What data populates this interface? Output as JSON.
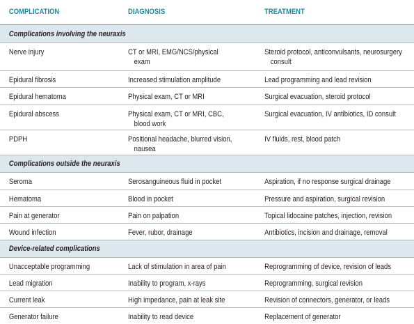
{
  "header": {
    "columns": [
      "COMPLICATION",
      "DIAGNOSIS",
      "TREATMENT"
    ]
  },
  "sections": [
    {
      "title": "Complications involving the neuraxis",
      "rows": [
        [
          "Nerve injury",
          "CT or MRI, EMG/NCS/physical exam",
          "Steroid protocol, anticonvulsants, neurosurgery consult"
        ],
        [
          "Epidural fibrosis",
          "Increased stimulation amplitude",
          "Lead programming and lead revision"
        ],
        [
          "Epidural hematoma",
          "Physical exam, CT or MRI",
          "Surgical evacuation, steroid protocol"
        ],
        [
          "Epidural abscess",
          "Physical exam, CT or MRI, CBC, blood work",
          "Surgical evacuation, IV antibiotics, ID consult"
        ],
        [
          "PDPH",
          "Positional headache, blurred vision, nausea",
          "IV fluids, rest, blood patch"
        ]
      ]
    },
    {
      "title": "Complications outside the neuraxis",
      "rows": [
        [
          "Seroma",
          "Serosanguineous fluid in pocket",
          "Aspiration, if no response surgical drainage"
        ],
        [
          "Hematoma",
          "Blood in pocket",
          "Pressure and aspiration, surgical revision"
        ],
        [
          "Pain at generator",
          "Pain on palpation",
          "Topical lidocaine patches, injection, revision"
        ],
        [
          "Wound infection",
          "Fever, rubor, drainage",
          "Antibiotics, incision and drainage, removal"
        ]
      ]
    },
    {
      "title": "Device-related complications",
      "rows": [
        [
          "Unacceptable programming",
          "Lack of stimulation in area of pain",
          "Reprogramming of device, revision of leads"
        ],
        [
          "Lead migration",
          "Inability to program, x-rays",
          "Reprogramming, surgical revision"
        ],
        [
          "Current leak",
          "High impedance, pain at leak site",
          "Revision of connectors, generator, or leads"
        ],
        [
          "Generator failure",
          "Inability to read device",
          "Replacement of generator"
        ]
      ]
    }
  ]
}
